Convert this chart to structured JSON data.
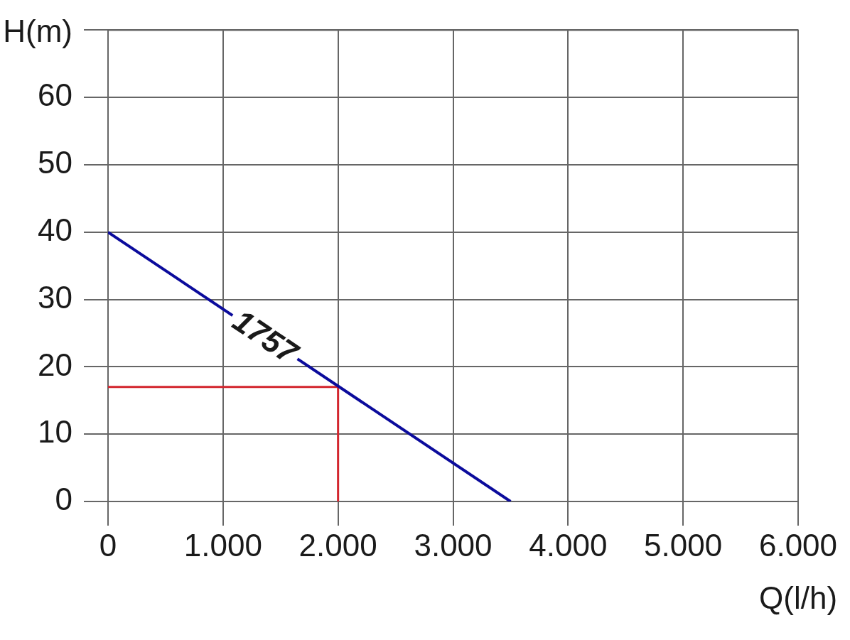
{
  "chart_data": {
    "type": "line",
    "xlabel": "Q(l/h)",
    "ylabel": "H(m)",
    "xlim": [
      0,
      6000
    ],
    "ylim": [
      0,
      70
    ],
    "xticks": [
      0,
      {
        "value": 1000,
        "label": "1.000"
      },
      {
        "value": 2000,
        "label": "2.000"
      },
      {
        "value": 3000,
        "label": "3.000"
      },
      {
        "value": 4000,
        "label": "4.000"
      },
      {
        "value": 5000,
        "label": "5.000"
      },
      {
        "value": 6000,
        "label": "6.000"
      }
    ],
    "yticks": [
      0,
      10,
      20,
      30,
      40,
      50,
      60,
      {
        "value": 70,
        "label": null
      }
    ],
    "grid": true,
    "legend": false,
    "marker": "none",
    "line_style": "solid",
    "series": [
      {
        "name": "1757",
        "color": "#0b0b9c",
        "x": [
          0,
          3500
        ],
        "values": [
          40,
          0
        ]
      },
      {
        "color": "#d3262e",
        "x": [
          0,
          2000,
          2000
        ],
        "values": [
          17,
          17,
          0
        ]
      }
    ]
  }
}
